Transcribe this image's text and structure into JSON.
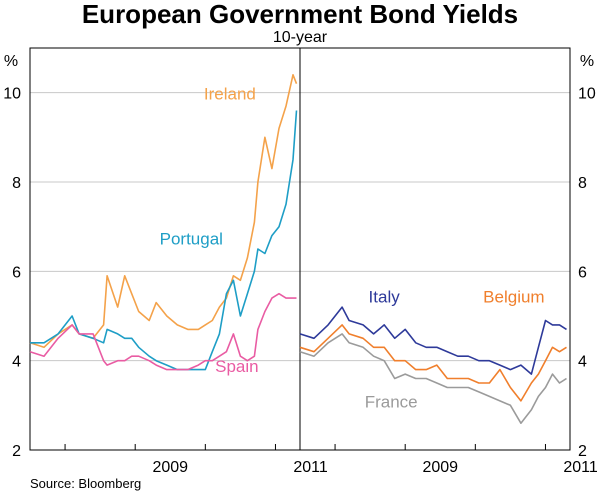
{
  "chart_data": {
    "type": "line",
    "title": "European Government Bond Yields",
    "subtitle": "10-year",
    "unit_label": "%",
    "source": "Source: Bloomberg",
    "ylim": [
      2,
      11
    ],
    "yticks": [
      2,
      4,
      6,
      8,
      10
    ],
    "xlim": [
      2007.5,
      2011.35
    ],
    "xticks": [
      {
        "value": 2009.5,
        "label": "2009"
      },
      {
        "value": 2011.5,
        "label": "2011"
      }
    ],
    "panels": [
      {
        "name": "left",
        "series": [
          {
            "name": "Ireland",
            "color": "#f4a24a",
            "x": [
              2007.5,
              2007.7,
              2007.9,
              2008.1,
              2008.2,
              2008.4,
              2008.55,
              2008.6,
              2008.75,
              2008.85,
              2008.95,
              2009.05,
              2009.2,
              2009.3,
              2009.45,
              2009.6,
              2009.75,
              2009.9,
              2010.0,
              2010.1,
              2010.2,
              2010.3,
              2010.4,
              2010.5,
              2010.6,
              2010.7,
              2010.75,
              2010.85,
              2010.95,
              2011.05,
              2011.15,
              2011.25,
              2011.3
            ],
            "y": [
              4.4,
              4.3,
              4.6,
              4.8,
              4.6,
              4.5,
              4.8,
              5.9,
              5.2,
              5.9,
              5.5,
              5.1,
              4.9,
              5.3,
              5.0,
              4.8,
              4.7,
              4.7,
              4.8,
              4.9,
              5.2,
              5.4,
              5.9,
              5.8,
              6.3,
              7.1,
              8.0,
              9.0,
              8.3,
              9.2,
              9.7,
              10.4,
              10.2
            ]
          },
          {
            "name": "Portugal",
            "color": "#1e9ec6",
            "x": [
              2007.5,
              2007.7,
              2007.9,
              2008.1,
              2008.2,
              2008.4,
              2008.55,
              2008.6,
              2008.75,
              2008.85,
              2008.95,
              2009.05,
              2009.2,
              2009.3,
              2009.45,
              2009.6,
              2009.75,
              2009.9,
              2010.0,
              2010.1,
              2010.2,
              2010.3,
              2010.4,
              2010.5,
              2010.6,
              2010.7,
              2010.75,
              2010.85,
              2010.95,
              2011.05,
              2011.15,
              2011.25,
              2011.3
            ],
            "y": [
              4.4,
              4.4,
              4.6,
              5.0,
              4.6,
              4.5,
              4.4,
              4.7,
              4.6,
              4.5,
              4.5,
              4.3,
              4.1,
              4.0,
              3.9,
              3.8,
              3.8,
              3.8,
              3.8,
              4.2,
              4.6,
              5.5,
              5.8,
              5.0,
              5.5,
              6.0,
              6.5,
              6.4,
              6.8,
              7.0,
              7.5,
              8.5,
              9.6
            ]
          },
          {
            "name": "Spain",
            "color": "#e95ca3",
            "x": [
              2007.5,
              2007.7,
              2007.9,
              2008.1,
              2008.2,
              2008.4,
              2008.55,
              2008.6,
              2008.75,
              2008.85,
              2008.95,
              2009.05,
              2009.2,
              2009.3,
              2009.45,
              2009.6,
              2009.75,
              2009.9,
              2010.0,
              2010.1,
              2010.2,
              2010.3,
              2010.4,
              2010.5,
              2010.6,
              2010.7,
              2010.75,
              2010.85,
              2010.95,
              2011.05,
              2011.15,
              2011.25,
              2011.3
            ],
            "y": [
              4.2,
              4.1,
              4.5,
              4.8,
              4.6,
              4.6,
              4.0,
              3.9,
              4.0,
              4.0,
              4.1,
              4.1,
              4.0,
              3.9,
              3.8,
              3.8,
              3.8,
              3.9,
              4.0,
              4.0,
              4.1,
              4.2,
              4.6,
              4.1,
              4.0,
              4.1,
              4.7,
              5.1,
              5.4,
              5.5,
              5.4,
              5.4,
              5.4
            ]
          }
        ]
      },
      {
        "name": "right",
        "series": [
          {
            "name": "Italy",
            "color": "#2e3a9a",
            "x": [
              2007.5,
              2007.7,
              2007.9,
              2008.1,
              2008.2,
              2008.4,
              2008.55,
              2008.7,
              2008.85,
              2009.0,
              2009.15,
              2009.3,
              2009.45,
              2009.6,
              2009.75,
              2009.9,
              2010.05,
              2010.2,
              2010.35,
              2010.5,
              2010.65,
              2010.8,
              2010.9,
              2011.0,
              2011.1,
              2011.2,
              2011.3
            ],
            "y": [
              4.6,
              4.5,
              4.8,
              5.2,
              4.9,
              4.8,
              4.6,
              4.8,
              4.5,
              4.7,
              4.4,
              4.3,
              4.3,
              4.2,
              4.1,
              4.1,
              4.0,
              4.0,
              3.9,
              3.8,
              3.9,
              3.7,
              4.3,
              4.9,
              4.8,
              4.8,
              4.7
            ]
          },
          {
            "name": "Belgium",
            "color": "#f07f2c",
            "x": [
              2007.5,
              2007.7,
              2007.9,
              2008.1,
              2008.2,
              2008.4,
              2008.55,
              2008.7,
              2008.85,
              2009.0,
              2009.15,
              2009.3,
              2009.45,
              2009.6,
              2009.75,
              2009.9,
              2010.05,
              2010.2,
              2010.35,
              2010.5,
              2010.65,
              2010.8,
              2010.9,
              2011.0,
              2011.1,
              2011.2,
              2011.3
            ],
            "y": [
              4.3,
              4.2,
              4.5,
              4.8,
              4.6,
              4.5,
              4.3,
              4.3,
              4.0,
              4.0,
              3.8,
              3.8,
              3.9,
              3.6,
              3.6,
              3.6,
              3.5,
              3.5,
              3.8,
              3.4,
              3.1,
              3.5,
              3.7,
              4.0,
              4.3,
              4.2,
              4.3
            ]
          },
          {
            "name": "France",
            "color": "#9b9b9b",
            "x": [
              2007.5,
              2007.7,
              2007.9,
              2008.1,
              2008.2,
              2008.4,
              2008.55,
              2008.7,
              2008.85,
              2009.0,
              2009.15,
              2009.3,
              2009.45,
              2009.6,
              2009.75,
              2009.9,
              2010.05,
              2010.2,
              2010.35,
              2010.5,
              2010.65,
              2010.8,
              2010.9,
              2011.0,
              2011.1,
              2011.2,
              2011.3
            ],
            "y": [
              4.2,
              4.1,
              4.4,
              4.6,
              4.4,
              4.3,
              4.1,
              4.0,
              3.6,
              3.7,
              3.6,
              3.6,
              3.5,
              3.4,
              3.4,
              3.4,
              3.3,
              3.2,
              3.1,
              3.0,
              2.6,
              2.9,
              3.2,
              3.4,
              3.7,
              3.5,
              3.6
            ]
          }
        ]
      }
    ],
    "annotations": [
      {
        "text": "Ireland",
        "series": "Ireland",
        "panel": "left",
        "x": 2010.35,
        "y": 9.85
      },
      {
        "text": "Portugal",
        "series": "Portugal",
        "panel": "left",
        "x": 2009.8,
        "y": 6.6
      },
      {
        "text": "Spain",
        "series": "Spain",
        "panel": "left",
        "x": 2010.45,
        "y": 3.75
      },
      {
        "text": "Italy",
        "series": "Italy",
        "panel": "right",
        "x": 2008.7,
        "y": 5.3
      },
      {
        "text": "Belgium",
        "series": "Belgium",
        "panel": "right",
        "x": 2010.55,
        "y": 5.3
      },
      {
        "text": "France",
        "series": "France",
        "panel": "right",
        "x": 2008.8,
        "y": 2.95
      }
    ]
  }
}
